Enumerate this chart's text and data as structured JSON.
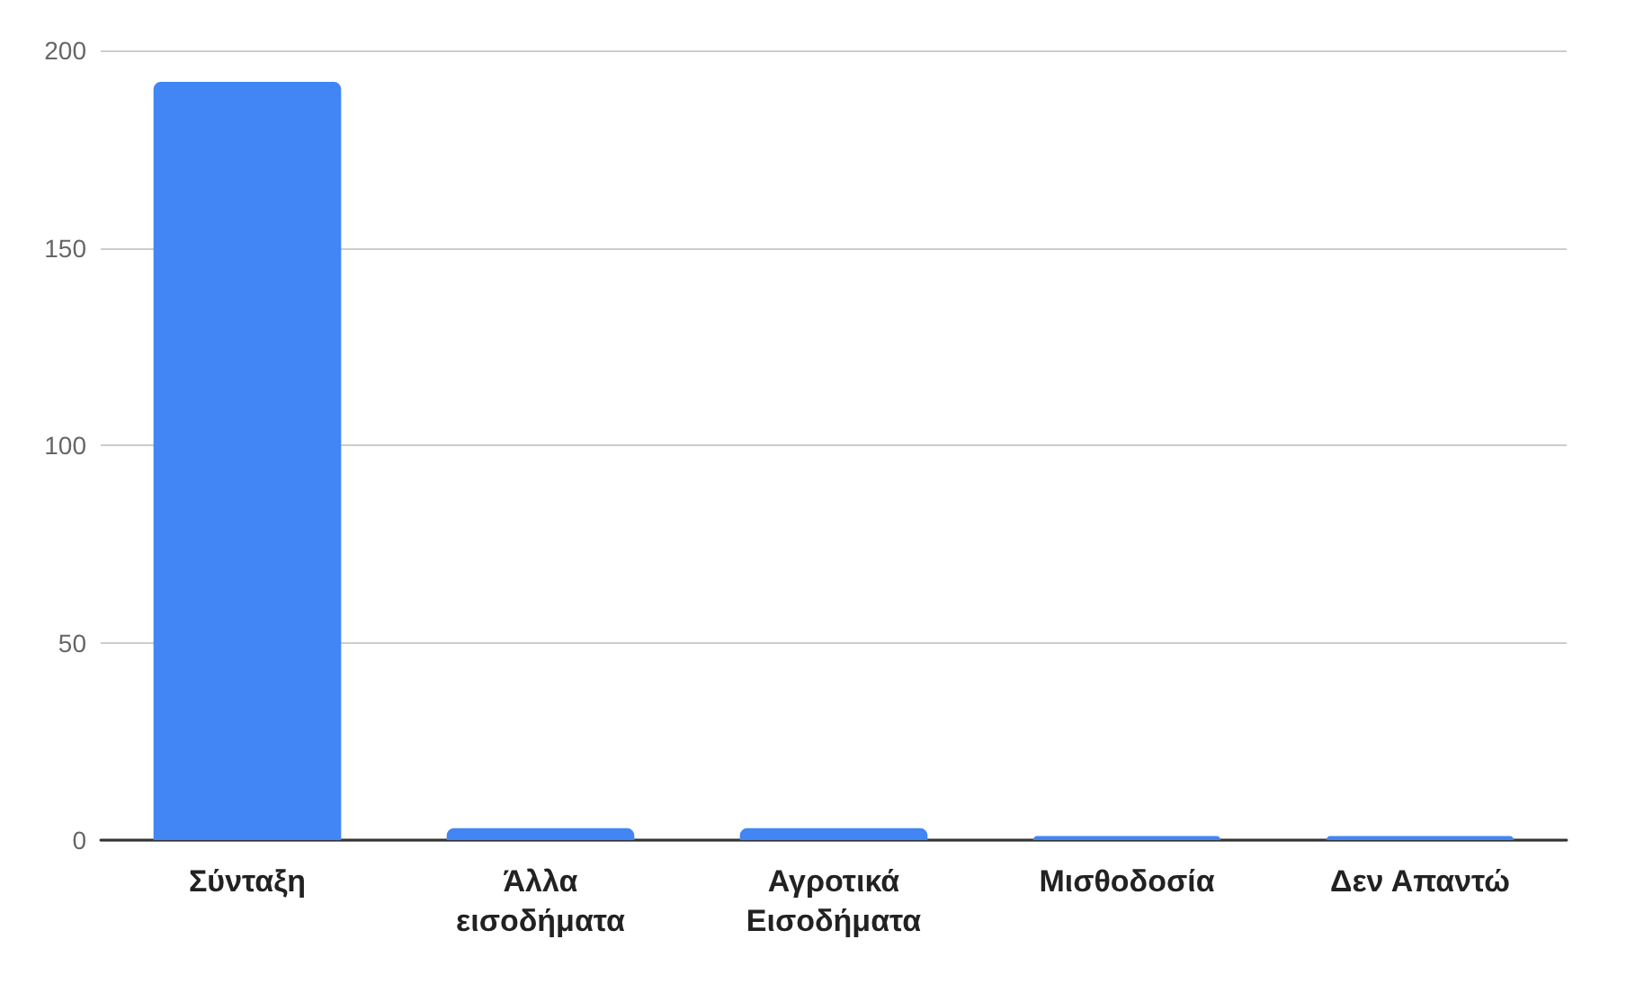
{
  "chart_data": {
    "type": "bar",
    "categories": [
      "Σύνταξη",
      "Άλλα εισοδήματα",
      "Αγροτικά Εισοδήματα",
      "Μισθοδοσία",
      "Δεν Απαντώ"
    ],
    "values": [
      192,
      3,
      3,
      1,
      1
    ],
    "color": "#4285f4",
    "ylim": [
      0,
      200
    ],
    "yticks": [
      0,
      50,
      100,
      150,
      200
    ],
    "grid": "y"
  }
}
